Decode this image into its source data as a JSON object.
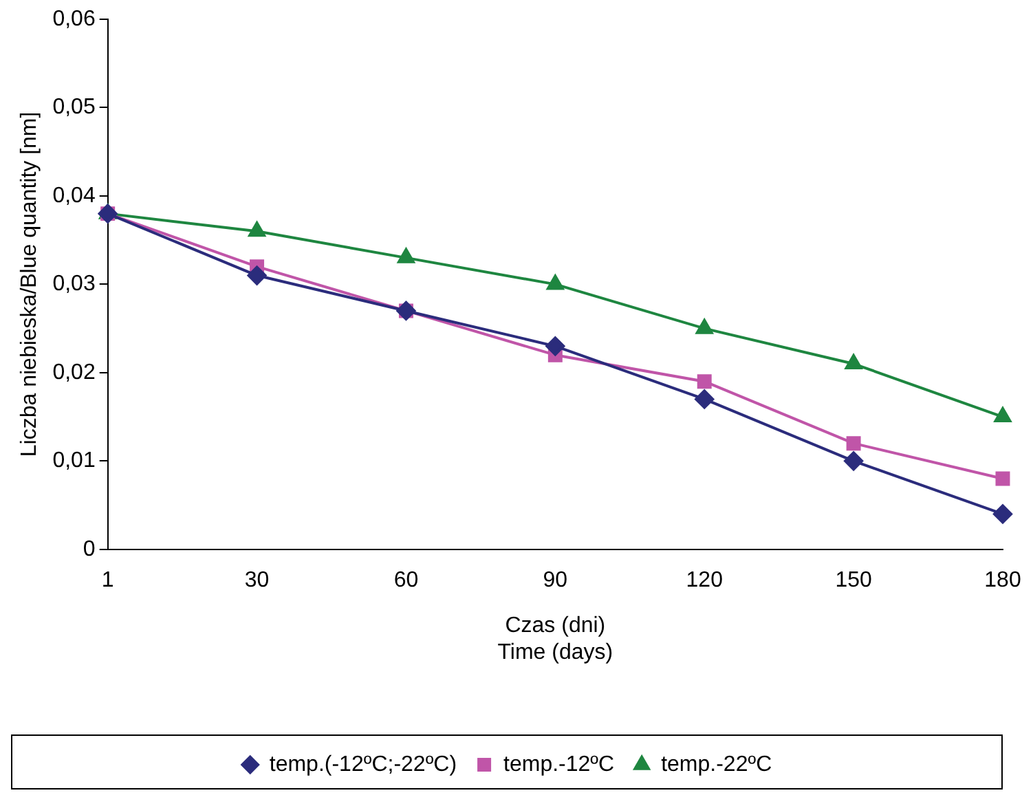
{
  "chart_data": {
    "type": "line",
    "xlabel": "Czas (dni)\nTime (days)",
    "ylabel": "Liczba niebieska/Blue quantity [nm]",
    "categories": [
      "1",
      "30",
      "60",
      "90",
      "120",
      "150",
      "180"
    ],
    "ylim": [
      0,
      0.06
    ],
    "yticks": [
      0,
      {
        "value": 0.01,
        "label": "0,01"
      },
      {
        "value": 0.02,
        "label": "0,02"
      },
      {
        "value": 0.03,
        "label": "0,03"
      },
      {
        "value": 0.04,
        "label": "0,04"
      },
      {
        "value": 0.05,
        "label": "0,05"
      },
      {
        "value": 0.06,
        "label": "0,06"
      }
    ],
    "grid": false,
    "legend": "bottom",
    "line_style": "solid",
    "series": [
      {
        "name": "temp.(-12ºC;-22ºC)",
        "color": "#2b2c7c",
        "marker": "diamond",
        "values": [
          0.038,
          0.031,
          0.027,
          0.023,
          0.017,
          0.01,
          0.004
        ]
      },
      {
        "name": "temp.-12ºC",
        "color": "#c055a8",
        "marker": "square",
        "values": [
          0.038,
          0.032,
          0.027,
          0.022,
          0.019,
          0.012,
          0.008
        ]
      },
      {
        "name": "temp.-22ºC",
        "color": "#1e8640",
        "marker": "triangle",
        "values": [
          0.038,
          0.036,
          0.033,
          0.03,
          0.025,
          0.021,
          0.015
        ]
      }
    ]
  }
}
